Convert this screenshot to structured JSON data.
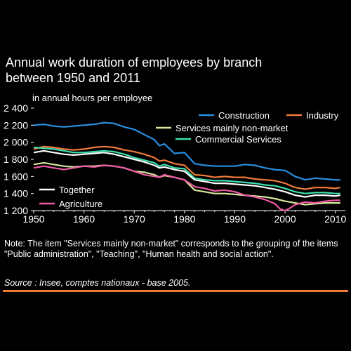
{
  "title_line1": "Annual work duration of employees by branch",
  "title_line2": "between 1950 and 2011",
  "unit_label": "in annual hours per employee",
  "note": "Note: The item \"Services mainly non-market\" corresponds to the grouping of the items \"Public administration\", \"Teaching\", \"Human health and social action\".",
  "source": "Source : Insee, comptes nationaux - base 2005.",
  "chart_data": {
    "type": "line",
    "ylabel": "in annual hours per employee",
    "xlim": [
      1950,
      2012
    ],
    "ylim": [
      1200,
      2400
    ],
    "xticks": [
      "1950",
      "1960",
      "1970",
      "1980",
      "1990",
      "2000",
      "2010"
    ],
    "yticks": [
      "1 200",
      "1 400",
      "1 600",
      "1 800",
      "2 000",
      "2 200",
      "2 400"
    ],
    "grid": false,
    "series": [
      {
        "name": "Construction",
        "color": "#2a8fe0",
        "x": [
          1950,
          1952,
          1954,
          1956,
          1958,
          1960,
          1962,
          1964,
          1966,
          1968,
          1970,
          1972,
          1974,
          1975,
          1976,
          1978,
          1980,
          1982,
          1984,
          1986,
          1988,
          1990,
          1992,
          1994,
          1996,
          1998,
          2000,
          2002,
          2004,
          2006,
          2008,
          2010,
          2011
        ],
        "y": [
          2200,
          2210,
          2190,
          2180,
          2190,
          2200,
          2210,
          2230,
          2220,
          2180,
          2150,
          2090,
          2030,
          1960,
          1980,
          1870,
          1880,
          1750,
          1730,
          1720,
          1720,
          1720,
          1740,
          1730,
          1700,
          1680,
          1670,
          1600,
          1560,
          1580,
          1570,
          1560,
          1560
        ]
      },
      {
        "name": "Industry",
        "color": "#f07a3a",
        "x": [
          1950,
          1952,
          1954,
          1956,
          1958,
          1960,
          1962,
          1964,
          1966,
          1968,
          1970,
          1972,
          1974,
          1975,
          1976,
          1978,
          1980,
          1982,
          1984,
          1986,
          1988,
          1990,
          1992,
          1994,
          1996,
          1998,
          2000,
          2002,
          2004,
          2006,
          2008,
          2010,
          2011
        ],
        "y": [
          1920,
          1950,
          1940,
          1920,
          1910,
          1920,
          1940,
          1950,
          1940,
          1910,
          1890,
          1860,
          1820,
          1780,
          1790,
          1750,
          1730,
          1620,
          1610,
          1590,
          1600,
          1590,
          1590,
          1570,
          1560,
          1550,
          1520,
          1470,
          1450,
          1470,
          1470,
          1460,
          1470
        ]
      },
      {
        "name": "Services mainly non-market",
        "color": "#d8e89a",
        "x": [
          1950,
          1952,
          1954,
          1956,
          1958,
          1960,
          1962,
          1964,
          1966,
          1968,
          1970,
          1972,
          1974,
          1975,
          1976,
          1978,
          1980,
          1982,
          1984,
          1986,
          1988,
          1990,
          1992,
          1994,
          1996,
          1998,
          2000,
          2002,
          2004,
          2006,
          2008,
          2010,
          2011
        ],
        "y": [
          1740,
          1760,
          1740,
          1720,
          1710,
          1720,
          1720,
          1730,
          1720,
          1700,
          1660,
          1650,
          1620,
          1590,
          1610,
          1590,
          1560,
          1440,
          1420,
          1400,
          1400,
          1390,
          1380,
          1370,
          1360,
          1340,
          1310,
          1290,
          1270,
          1280,
          1290,
          1290,
          1290
        ]
      },
      {
        "name": "Commercial Services",
        "color": "#3de0b0",
        "x": [
          1950,
          1952,
          1954,
          1956,
          1958,
          1960,
          1962,
          1964,
          1966,
          1968,
          1970,
          1972,
          1974,
          1975,
          1976,
          1978,
          1980,
          1982,
          1984,
          1986,
          1988,
          1990,
          1992,
          1994,
          1996,
          1998,
          2000,
          2002,
          2004,
          2006,
          2008,
          2010,
          2011
        ],
        "y": [
          1940,
          1930,
          1920,
          1900,
          1880,
          1880,
          1890,
          1900,
          1890,
          1860,
          1820,
          1790,
          1760,
          1720,
          1740,
          1700,
          1690,
          1580,
          1560,
          1550,
          1550,
          1540,
          1530,
          1520,
          1500,
          1490,
          1460,
          1420,
          1400,
          1410,
          1410,
          1400,
          1400
        ]
      },
      {
        "name": "Together",
        "color": "#ffffff",
        "x": [
          1950,
          1952,
          1954,
          1956,
          1958,
          1960,
          1962,
          1964,
          1966,
          1968,
          1970,
          1972,
          1974,
          1975,
          1976,
          1978,
          1980,
          1982,
          1984,
          1986,
          1988,
          1990,
          1992,
          1994,
          1996,
          1998,
          2000,
          2002,
          2004,
          2006,
          2008,
          2010,
          2011
        ],
        "y": [
          1880,
          1900,
          1880,
          1860,
          1850,
          1860,
          1870,
          1880,
          1860,
          1830,
          1800,
          1770,
          1730,
          1700,
          1710,
          1680,
          1660,
          1560,
          1540,
          1520,
          1520,
          1510,
          1500,
          1490,
          1470,
          1450,
          1420,
          1380,
          1360,
          1380,
          1380,
          1370,
          1380
        ]
      },
      {
        "name": "Agriculture",
        "color": "#f05aa8",
        "x": [
          1950,
          1952,
          1954,
          1956,
          1958,
          1960,
          1962,
          1964,
          1966,
          1968,
          1970,
          1972,
          1974,
          1975,
          1976,
          1978,
          1980,
          1982,
          1984,
          1986,
          1988,
          1990,
          1992,
          1994,
          1996,
          1998,
          1999,
          2000,
          2001,
          2002,
          2004,
          2006,
          2008,
          2010,
          2011
        ],
        "y": [
          1700,
          1720,
          1700,
          1680,
          1700,
          1720,
          1710,
          1730,
          1720,
          1700,
          1660,
          1620,
          1600,
          1590,
          1620,
          1590,
          1560,
          1480,
          1460,
          1430,
          1440,
          1420,
          1380,
          1360,
          1330,
          1280,
          1220,
          1200,
          1230,
          1270,
          1300,
          1290,
          1310,
          1320,
          1320
        ]
      }
    ],
    "legend": [
      {
        "series": "Construction",
        "label": "Construction"
      },
      {
        "series": "Industry",
        "label": "Industry"
      },
      {
        "series": "Services mainly non-market",
        "label": "Services mainly non-market"
      },
      {
        "series": "Commercial Services",
        "label": "Commercial Services"
      },
      {
        "series": "Together",
        "label": "Together"
      },
      {
        "series": "Agriculture",
        "label": "Agriculture"
      }
    ]
  }
}
